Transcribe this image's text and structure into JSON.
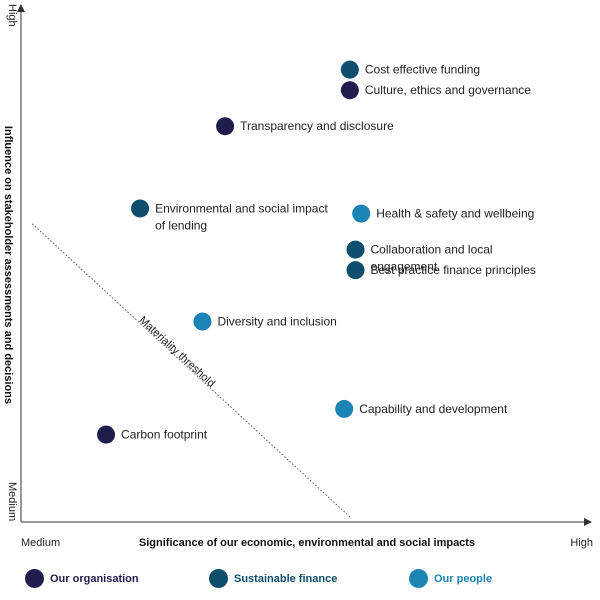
{
  "chart_data": {
    "type": "scatter",
    "title": "",
    "xlabel": "Significance of our economic, environmental and social impacts",
    "ylabel": "Influence on stakeholder assessments and decisions",
    "x_ticks": {
      "low": "Medium",
      "high": "High"
    },
    "y_ticks": {
      "low": "Medium",
      "high": "High"
    },
    "xlim": [
      0,
      100
    ],
    "ylim": [
      0,
      100
    ],
    "threshold": {
      "label": "Materiality threshold",
      "from": [
        2,
        58
      ],
      "to": [
        58,
        1
      ]
    },
    "series": [
      {
        "name": "Our organisation",
        "color": "#1f1d4e"
      },
      {
        "name": "Sustainable finance",
        "color": "#0e4d6b"
      },
      {
        "name": "Our people",
        "color": "#1c84b4"
      }
    ],
    "points": [
      {
        "label": "Cost effective funding",
        "series": 1,
        "x": 58,
        "y": 88
      },
      {
        "label": "Culture, ethics and governance",
        "series": 0,
        "x": 58,
        "y": 84
      },
      {
        "label": "Transparency and disclosure",
        "series": 0,
        "x": 36,
        "y": 77
      },
      {
        "label": "Environmental and social impact of lending",
        "series": 1,
        "x": 21,
        "y": 61
      },
      {
        "label": "Health & safety and wellbeing",
        "series": 2,
        "x": 60,
        "y": 60
      },
      {
        "label": "Collaboration and local engagement",
        "series": 1,
        "x": 59,
        "y": 53
      },
      {
        "label": "Best practice finance principles",
        "series": 1,
        "x": 59,
        "y": 49
      },
      {
        "label": "Diversity and inclusion",
        "series": 2,
        "x": 32,
        "y": 39
      },
      {
        "label": "Capability and development",
        "series": 2,
        "x": 57,
        "y": 22
      },
      {
        "label": "Carbon footprint",
        "series": 0,
        "x": 15,
        "y": 17
      }
    ],
    "legend_position": "bottom",
    "grid": false
  }
}
